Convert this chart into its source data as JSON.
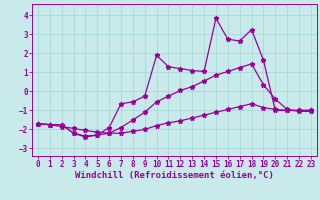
{
  "xlabel": "Windchill (Refroidissement éolien,°C)",
  "background_color": "#c8eaea",
  "grid_color": "#aad8d8",
  "line_color": "#990099",
  "xlim": [
    -0.5,
    23.5
  ],
  "ylim": [
    -3.4,
    4.6
  ],
  "yticks": [
    -3,
    -2,
    -1,
    0,
    1,
    2,
    3,
    4
  ],
  "xticks": [
    0,
    1,
    2,
    3,
    4,
    5,
    6,
    7,
    8,
    9,
    10,
    11,
    12,
    13,
    14,
    15,
    16,
    17,
    18,
    19,
    20,
    21,
    22,
    23
  ],
  "line1_x": [
    0,
    1,
    2,
    3,
    4,
    5,
    6,
    7,
    8,
    9,
    10,
    11,
    12,
    13,
    14,
    15,
    16,
    17,
    18,
    19,
    20,
    21,
    22,
    23
  ],
  "line1_y": [
    -1.7,
    -1.75,
    -1.75,
    -2.2,
    -2.35,
    -2.3,
    -1.9,
    -0.65,
    -0.55,
    -0.25,
    1.9,
    1.3,
    1.2,
    1.1,
    1.05,
    3.85,
    2.75,
    2.65,
    3.25,
    1.65,
    -1.0,
    -1.0,
    -1.0,
    -1.0
  ],
  "line2_x": [
    0,
    1,
    2,
    3,
    4,
    5,
    6,
    7,
    8,
    9,
    10,
    11,
    12,
    13,
    14,
    15,
    16,
    17,
    18,
    19,
    20,
    21,
    22,
    23
  ],
  "line2_y": [
    -1.7,
    -1.75,
    -1.75,
    -2.2,
    -2.4,
    -2.3,
    -2.2,
    -1.9,
    -1.5,
    -1.1,
    -0.55,
    -0.25,
    0.05,
    0.25,
    0.55,
    0.85,
    1.05,
    1.25,
    1.45,
    0.35,
    -0.4,
    -0.95,
    -1.05,
    -1.05
  ],
  "line3_x": [
    0,
    1,
    2,
    3,
    4,
    5,
    6,
    7,
    8,
    9,
    10,
    11,
    12,
    13,
    14,
    15,
    16,
    17,
    18,
    19,
    20,
    21,
    22,
    23
  ],
  "line3_y": [
    -1.7,
    -1.75,
    -1.85,
    -1.95,
    -2.05,
    -2.15,
    -2.2,
    -2.2,
    -2.1,
    -2.0,
    -1.8,
    -1.65,
    -1.55,
    -1.4,
    -1.25,
    -1.1,
    -0.95,
    -0.8,
    -0.65,
    -0.85,
    -0.95,
    -1.0,
    -1.0,
    -1.0
  ],
  "tick_fontsize": 5.5,
  "xlabel_fontsize": 6.5
}
